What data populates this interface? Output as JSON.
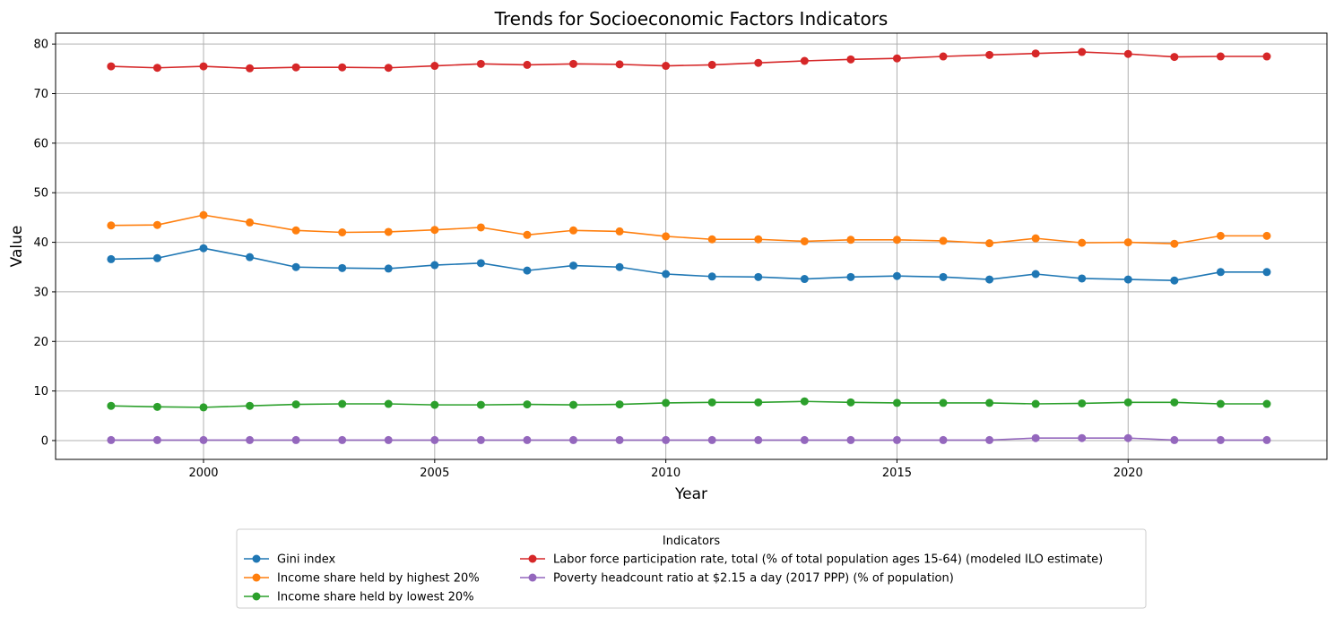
{
  "chart_data": {
    "type": "line",
    "title": "Trends for Socioeconomic Factors Indicators",
    "xlabel": "Year",
    "ylabel": "Value",
    "xlim": [
      1996.8,
      2024.3
    ],
    "ylim": [
      -3.8,
      82.2
    ],
    "x_ticks": [
      2000,
      2005,
      2010,
      2015,
      2020
    ],
    "y_ticks": [
      0,
      10,
      20,
      30,
      40,
      50,
      60,
      70,
      80
    ],
    "grid": true,
    "legend_title": "Indicators",
    "legend_position": "bottom-center",
    "x": [
      1998,
      1999,
      2000,
      2001,
      2002,
      2003,
      2004,
      2005,
      2006,
      2007,
      2008,
      2009,
      2010,
      2011,
      2012,
      2013,
      2014,
      2015,
      2016,
      2017,
      2018,
      2019,
      2020,
      2021,
      2022,
      2023
    ],
    "series": [
      {
        "name": "Gini index",
        "color": "#1f77b4",
        "values": [
          36.6,
          36.8,
          38.8,
          37.0,
          35.0,
          34.8,
          34.7,
          35.4,
          35.8,
          34.3,
          35.3,
          35.0,
          33.6,
          33.1,
          33.0,
          32.6,
          33.0,
          33.2,
          33.0,
          32.5,
          33.6,
          32.7,
          32.5,
          32.3,
          34.0,
          34.0
        ]
      },
      {
        "name": "Income share held by highest 20%",
        "color": "#ff7f0e",
        "values": [
          43.4,
          43.5,
          45.5,
          44.0,
          42.4,
          42.0,
          42.1,
          42.5,
          43.0,
          41.5,
          42.4,
          42.2,
          41.2,
          40.6,
          40.6,
          40.2,
          40.5,
          40.5,
          40.3,
          39.8,
          40.8,
          39.9,
          40.0,
          39.7,
          41.3,
          41.3
        ]
      },
      {
        "name": "Income share held by lowest 20%",
        "color": "#2ca02c",
        "values": [
          7.0,
          6.8,
          6.7,
          7.0,
          7.3,
          7.4,
          7.4,
          7.2,
          7.2,
          7.3,
          7.2,
          7.3,
          7.6,
          7.7,
          7.7,
          7.9,
          7.7,
          7.6,
          7.6,
          7.6,
          7.4,
          7.5,
          7.7,
          7.7,
          7.4,
          7.4
        ]
      },
      {
        "name": "Labor force participation rate, total (% of total population ages 15-64) (modeled ILO estimate)",
        "color": "#d62728",
        "values": [
          75.5,
          75.2,
          75.5,
          75.1,
          75.3,
          75.3,
          75.2,
          75.6,
          76.0,
          75.8,
          76.0,
          75.9,
          75.6,
          75.8,
          76.2,
          76.6,
          76.9,
          77.1,
          77.5,
          77.8,
          78.1,
          78.4,
          78.0,
          77.4,
          77.5,
          77.5
        ]
      },
      {
        "name": "Poverty headcount ratio at $2.15 a day (2017 PPP) (% of population)",
        "color": "#9467bd",
        "values": [
          0.1,
          0.1,
          0.1,
          0.1,
          0.1,
          0.1,
          0.1,
          0.1,
          0.1,
          0.1,
          0.1,
          0.1,
          0.1,
          0.1,
          0.1,
          0.1,
          0.1,
          0.1,
          0.1,
          0.1,
          0.5,
          0.5,
          0.5,
          0.1,
          0.1,
          0.1
        ]
      }
    ]
  }
}
